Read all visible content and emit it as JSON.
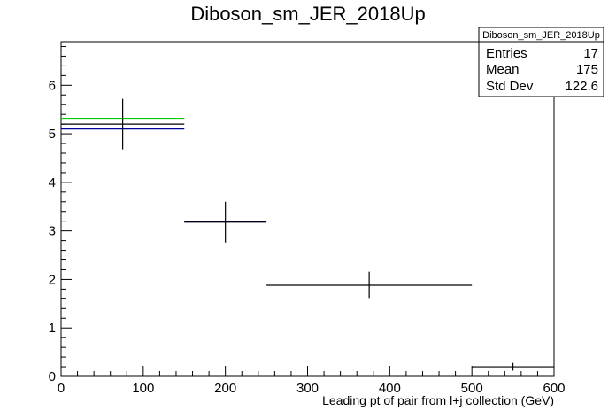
{
  "chart_data": {
    "type": "scatter",
    "title": "Diboson_sm_JER_2018Up",
    "xlabel": "Leading pt of pair from l+j collection (GeV)",
    "ylabel": "",
    "xlim": [
      0,
      600
    ],
    "ylim": [
      0,
      6.9
    ],
    "x_ticks": [
      0,
      100,
      200,
      300,
      400,
      500,
      600
    ],
    "y_ticks": [
      0,
      1,
      2,
      3,
      4,
      5,
      6
    ],
    "grid": false,
    "points": [
      {
        "x": 75,
        "xlow": 0,
        "xhigh": 150,
        "y": 5.2,
        "yerr": 0.52
      },
      {
        "x": 200,
        "xlow": 150,
        "xhigh": 250,
        "y": 3.18,
        "yerr": 0.42
      },
      {
        "x": 375,
        "xlow": 250,
        "xhigh": 500,
        "y": 1.88,
        "yerr": 0.28
      },
      {
        "x": 550,
        "xlow": 500,
        "xhigh": 600,
        "y": 0.2,
        "yerr": 0.08
      }
    ],
    "variations": [
      {
        "color": "#00cc00",
        "segments": [
          {
            "xlow": 0,
            "xhigh": 150,
            "y": 5.32
          },
          {
            "xlow": 150,
            "xhigh": 250,
            "y": 3.19
          }
        ]
      },
      {
        "color": "#000099",
        "segments": [
          {
            "xlow": 0,
            "xhigh": 150,
            "y": 5.1
          },
          {
            "xlow": 150,
            "xhigh": 250,
            "y": 3.19
          }
        ]
      }
    ],
    "stats_box": {
      "title": "Diboson_sm_JER_2018Up",
      "rows": [
        {
          "label": "Entries",
          "value": "17"
        },
        {
          "label": "Mean",
          "value": "175"
        },
        {
          "label": "Std Dev",
          "value": "122.6"
        }
      ]
    }
  }
}
